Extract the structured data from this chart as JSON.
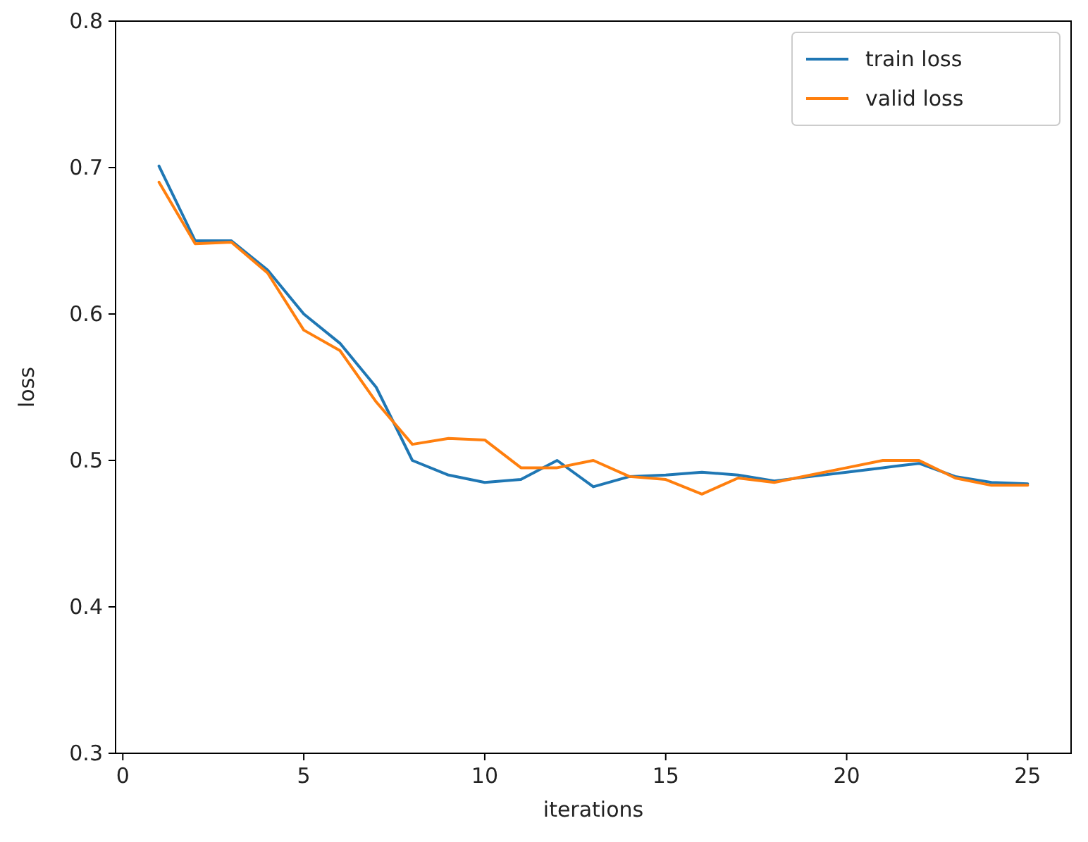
{
  "chart_data": {
    "type": "line",
    "xlabel": "iterations",
    "ylabel": "loss",
    "x": [
      1,
      2,
      3,
      4,
      5,
      6,
      7,
      8,
      9,
      10,
      11,
      12,
      13,
      14,
      15,
      16,
      17,
      18,
      19,
      20,
      21,
      22,
      23,
      24,
      25
    ],
    "series": [
      {
        "name": "train loss",
        "color": "#1f77b4",
        "values": [
          0.701,
          0.65,
          0.65,
          0.63,
          0.6,
          0.58,
          0.55,
          0.5,
          0.49,
          0.485,
          0.487,
          0.5,
          0.482,
          0.489,
          0.49,
          0.492,
          0.49,
          0.486,
          0.489,
          0.492,
          0.495,
          0.498,
          0.489,
          0.485,
          0.484
        ]
      },
      {
        "name": "valid loss",
        "color": "#ff7f0e",
        "values": [
          0.69,
          0.648,
          0.649,
          0.628,
          0.589,
          0.575,
          0.54,
          0.511,
          0.515,
          0.514,
          0.495,
          0.495,
          0.5,
          0.489,
          0.487,
          0.477,
          0.488,
          0.485,
          0.49,
          0.495,
          0.5,
          0.5,
          0.488,
          0.483,
          0.483
        ]
      }
    ],
    "xlim": [
      -0.2,
      26.2
    ],
    "xticks": [
      0,
      5,
      10,
      15,
      20,
      25
    ],
    "ylim": [
      0.3,
      0.8
    ],
    "yticks": [
      {
        "value": 0.3,
        "label": "0.3"
      },
      {
        "value": 0.4,
        "label": "0.4"
      },
      {
        "value": 0.5,
        "label": "0.5"
      },
      {
        "value": 0.6,
        "label": "0.6"
      },
      {
        "value": 0.7,
        "label": "0.7"
      },
      {
        "value": 0.8,
        "label": "0.8"
      }
    ],
    "legend": "top right",
    "grid": false,
    "marker": "none",
    "line_style": "solid"
  }
}
